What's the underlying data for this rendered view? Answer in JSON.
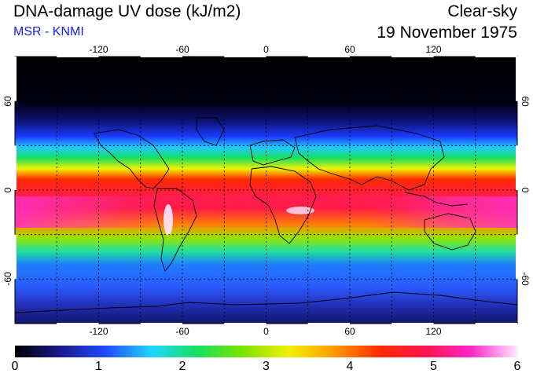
{
  "header": {
    "title": "DNA-damage UV dose (kJ/m2)",
    "subtitle": "MSR - KNMI",
    "condition": "Clear-sky",
    "date": "19 November 1975"
  },
  "map": {
    "lon_ticks": [
      "-120",
      "-60",
      "0",
      "60",
      "120"
    ],
    "lat_ticks": [
      "60",
      "0",
      "-60"
    ],
    "lon_values": [
      -120,
      -60,
      0,
      60,
      120
    ],
    "lat_values": [
      60,
      0,
      -60
    ],
    "lon_range": [
      -180,
      180
    ],
    "lat_range": [
      -90,
      90
    ],
    "grid": "dashed every 30 degrees",
    "projection": "equirectangular"
  },
  "colorbar": {
    "labels": [
      "0",
      "1",
      "2",
      "3",
      "4",
      "5",
      "6"
    ],
    "min": 0,
    "max": 6,
    "colors": [
      "#000000",
      "#1a1a8c",
      "#1f4cff",
      "#21d7ff",
      "#17e05f",
      "#7fe300",
      "#f1f100",
      "#ff9a00",
      "#ff2a00",
      "#ff1450",
      "#ff28c8",
      "#ffe8ff"
    ]
  }
}
